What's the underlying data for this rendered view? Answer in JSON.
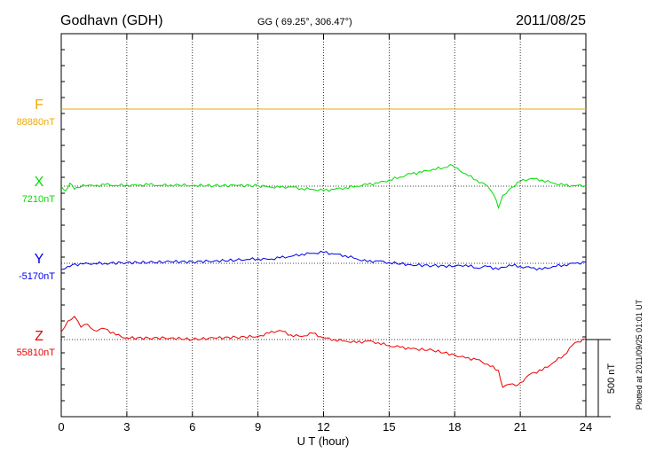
{
  "chart_data": {
    "type": "line",
    "title": "Godhavn (GDH)",
    "subtitle": "GG ( 69.25°, 306.47°)",
    "date": "2011/08/25",
    "xlabel": "U T (hour)",
    "xlim": [
      0,
      24
    ],
    "xticks": [
      0,
      3,
      6,
      9,
      12,
      15,
      18,
      21,
      24
    ],
    "grid": true,
    "scale_bar_label": "500 nT",
    "scale_bar_nT": 500,
    "footnote": "Plotted at 2011/09/25 01:01 UT",
    "series": [
      {
        "name": "F",
        "baseline_label": "88880nT",
        "color": "#f0a800",
        "x": [
          0,
          24
        ],
        "y": [
          0,
          0
        ]
      },
      {
        "name": "X",
        "baseline_label": "7210nT",
        "color": "#00dd00",
        "x": [
          0,
          0.2,
          0.4,
          0.6,
          0.8,
          1,
          1.5,
          2,
          2.5,
          3,
          3.5,
          4,
          4.5,
          5,
          6,
          7,
          8,
          9,
          9.5,
          10,
          10.5,
          11,
          11.5,
          12,
          12.5,
          13,
          13.5,
          14,
          14.5,
          15,
          15.5,
          16,
          16.5,
          17,
          17.5,
          17.8,
          18,
          18.5,
          19,
          19.5,
          19.8,
          20,
          20.2,
          20.5,
          21,
          21.5,
          22,
          22.5,
          23,
          23.5,
          24
        ],
        "y": [
          0,
          -30,
          20,
          -20,
          -10,
          10,
          0,
          10,
          5,
          8,
          5,
          10,
          5,
          8,
          5,
          3,
          5,
          3,
          -5,
          -8,
          -5,
          -15,
          -20,
          -30,
          -20,
          -10,
          0,
          10,
          20,
          40,
          60,
          80,
          90,
          110,
          120,
          140,
          120,
          80,
          40,
          0,
          -60,
          -140,
          -60,
          -20,
          30,
          50,
          40,
          20,
          5,
          3,
          5
        ]
      },
      {
        "name": "Y",
        "baseline_label": "-5170nT",
        "color": "#0000ee",
        "x": [
          0,
          0.3,
          0.5,
          1,
          1.5,
          2,
          3,
          4,
          5,
          6,
          7,
          8,
          8.5,
          9,
          9.5,
          10,
          10.5,
          11,
          11.5,
          12,
          12.5,
          13,
          13.5,
          14,
          14.5,
          15,
          16,
          17,
          18,
          18.5,
          19,
          19.5,
          20,
          20.5,
          21,
          21.5,
          22,
          22.5,
          23,
          23.5,
          24
        ],
        "y": [
          -40,
          -20,
          -10,
          -5,
          0,
          0,
          5,
          5,
          10,
          10,
          15,
          20,
          25,
          30,
          25,
          35,
          45,
          60,
          65,
          70,
          60,
          50,
          30,
          10,
          15,
          5,
          -10,
          -15,
          -20,
          -10,
          -30,
          -20,
          -40,
          -10,
          -20,
          -30,
          -40,
          -20,
          -10,
          0,
          5
        ]
      },
      {
        "name": "Z",
        "baseline_label": "55810nT",
        "color": "#ee0000",
        "x": [
          0,
          0.3,
          0.6,
          0.9,
          1.2,
          1.5,
          2,
          2.5,
          3,
          4,
          5,
          6,
          7,
          8,
          9,
          9.5,
          10,
          10.5,
          11,
          11.5,
          12,
          12.5,
          13,
          13.5,
          14,
          14.5,
          15,
          15.5,
          16,
          17,
          18,
          18.5,
          19,
          19.5,
          20,
          20.2,
          20.5,
          20.8,
          21,
          21.5,
          22,
          22.5,
          23,
          23.5,
          24
        ],
        "y": [
          50,
          120,
          150,
          80,
          100,
          60,
          70,
          30,
          10,
          10,
          10,
          0,
          10,
          15,
          20,
          40,
          60,
          30,
          20,
          40,
          10,
          0,
          -10,
          -20,
          -10,
          -20,
          -40,
          -50,
          -60,
          -70,
          -100,
          -120,
          -130,
          -160,
          -200,
          -310,
          -290,
          -300,
          -280,
          -220,
          -200,
          -150,
          -100,
          -20,
          0
        ]
      }
    ]
  }
}
